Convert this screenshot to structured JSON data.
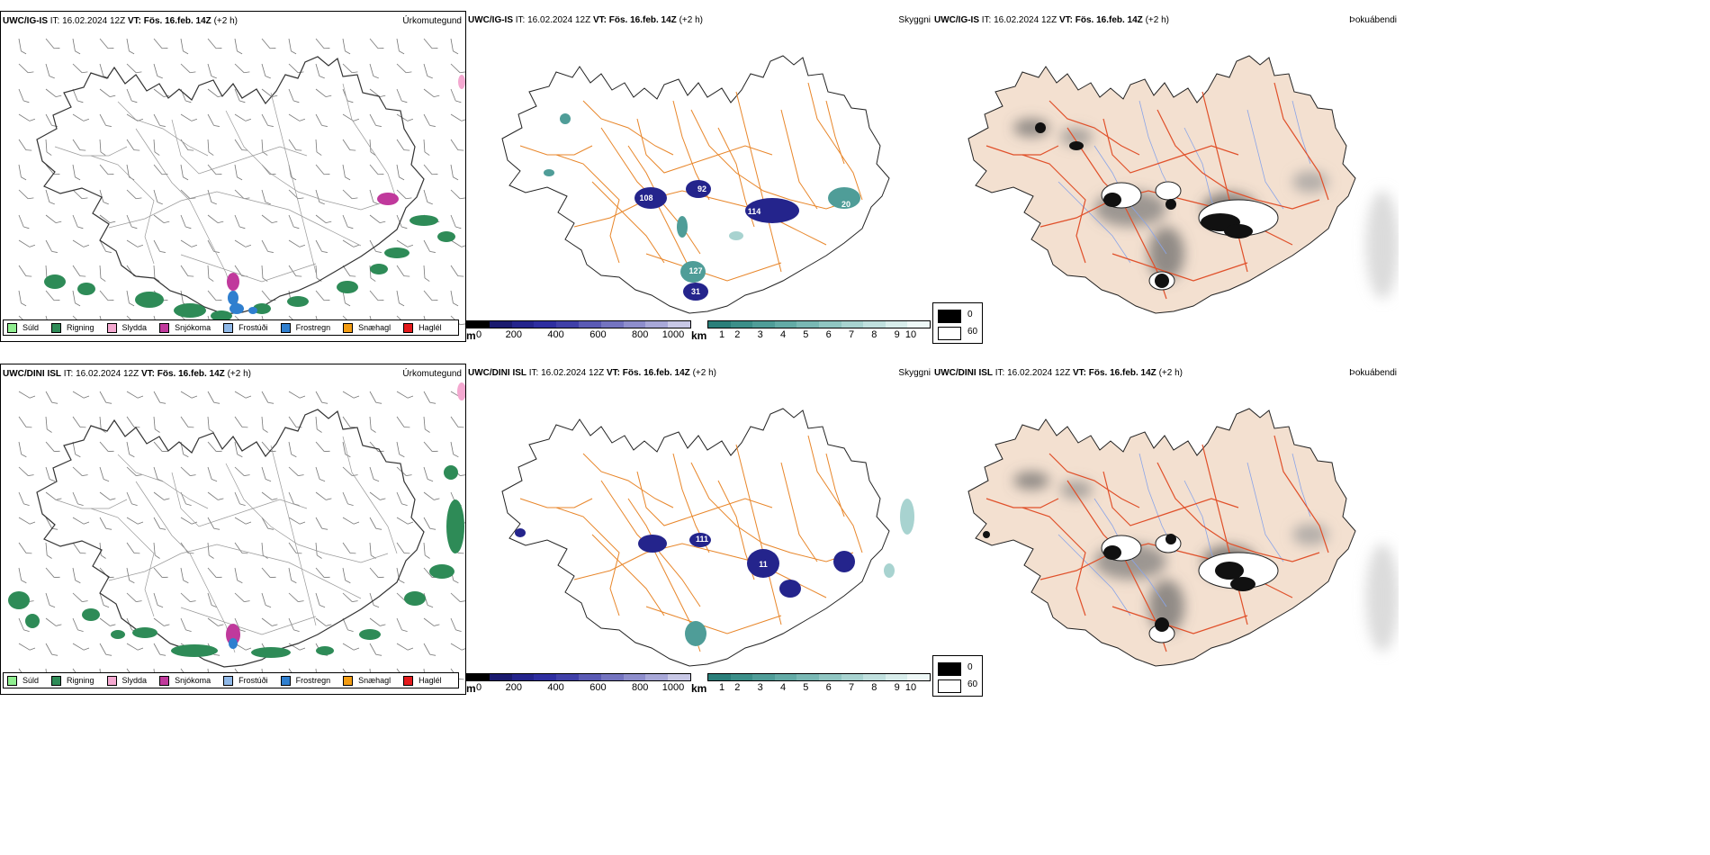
{
  "rows": [
    {
      "model": "UWC/IG-IS",
      "it_label": "IT:",
      "it_value": "16.02.2024 12Z",
      "vt_label": "VT:",
      "vt_value": "Fös. 16.feb. 14Z",
      "lead": "(+2 h)"
    },
    {
      "model": "UWC/DINI ISL",
      "it_label": "IT:",
      "it_value": "16.02.2024 12Z",
      "vt_label": "VT:",
      "vt_value": "Fös. 16.feb. 14Z",
      "lead": "(+2 h)"
    }
  ],
  "panel_names": {
    "precip": "Úrkomutegund",
    "visibility": "Skyggni",
    "fog": "Þokuábendi"
  },
  "precip_legend": [
    {
      "label": "Súld",
      "color": "#90ee90"
    },
    {
      "label": "Rigning",
      "color": "#2e8b57"
    },
    {
      "label": "Slydda",
      "color": "#f4a8d0"
    },
    {
      "label": "Snjókoma",
      "color": "#c0399c"
    },
    {
      "label": "Frostúði",
      "color": "#8fb8e8"
    },
    {
      "label": "Frostregn",
      "color": "#2f7fcf"
    },
    {
      "label": "Snæhagl",
      "color": "#f39c12"
    },
    {
      "label": "Haglél",
      "color": "#e41a1c"
    }
  ],
  "ceiling_scale": {
    "unit": "m",
    "ticks": [
      "0",
      "200",
      "400",
      "600",
      "800",
      "1000"
    ],
    "colors": [
      "#000000",
      "#1a1a6e",
      "#24248c",
      "#2e2ea0",
      "#4040a8",
      "#5a5ab4",
      "#7474c0",
      "#8e8ecc",
      "#a8a8d8",
      "#c8c8e6"
    ]
  },
  "visibility_scale": {
    "unit": "km",
    "ticks": [
      "1",
      "2",
      "3",
      "4",
      "5",
      "6",
      "7",
      "8",
      "9",
      "10"
    ],
    "colors": [
      "#2a7f7a",
      "#3b8f89",
      "#4f9d98",
      "#63aba6",
      "#79b8b4",
      "#90c6c2",
      "#a8d3d0",
      "#c0e0de",
      "#d8edeb",
      "#eef8f7"
    ]
  },
  "fog_scale": {
    "ticks": [
      "0",
      "60"
    ],
    "colors": [
      "#000000",
      "#ffffff"
    ]
  },
  "ceiling_labels_top": [
    "108",
    "92",
    "114",
    "20",
    "127",
    "31"
  ],
  "ceiling_labels_bottom": [
    "111",
    "11"
  ]
}
